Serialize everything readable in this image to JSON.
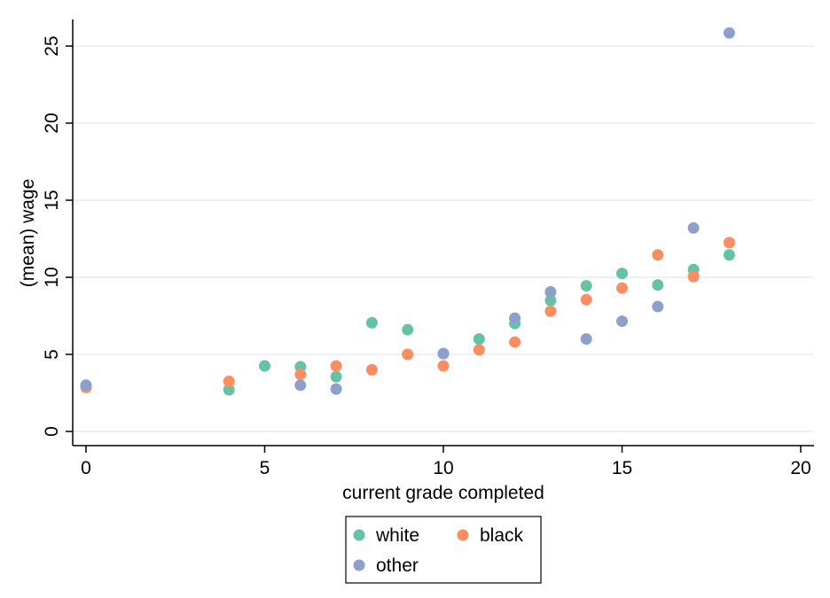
{
  "chart_data": {
    "type": "scatter",
    "xlabel": "current grade completed",
    "ylabel": "(mean) wage",
    "xlim": [
      0,
      20
    ],
    "ylim": [
      0,
      25
    ],
    "xticks": [
      "0",
      "5",
      "10",
      "15",
      "20"
    ],
    "yticks": [
      "0",
      "5",
      "10",
      "15",
      "20",
      "25"
    ],
    "grid": "horizontal",
    "legend_position": "bottom",
    "series": [
      {
        "name": "white",
        "color": "#66c2a5",
        "points": [
          {
            "x": 0,
            "y": 2.9
          },
          {
            "x": 4,
            "y": 2.7
          },
          {
            "x": 5,
            "y": 4.25
          },
          {
            "x": 6,
            "y": 4.2
          },
          {
            "x": 7,
            "y": 3.55
          },
          {
            "x": 8,
            "y": 7.05
          },
          {
            "x": 9,
            "y": 6.6
          },
          {
            "x": 10,
            "y": 5.05
          },
          {
            "x": 11,
            "y": 6.0
          },
          {
            "x": 12,
            "y": 7.0
          },
          {
            "x": 13,
            "y": 8.5
          },
          {
            "x": 14,
            "y": 9.45
          },
          {
            "x": 15,
            "y": 10.25
          },
          {
            "x": 16,
            "y": 9.5
          },
          {
            "x": 17,
            "y": 10.5
          },
          {
            "x": 18,
            "y": 11.45
          }
        ]
      },
      {
        "name": "black",
        "color": "#fc8d62",
        "points": [
          {
            "x": 0,
            "y": 2.85
          },
          {
            "x": 4,
            "y": 3.25
          },
          {
            "x": 6,
            "y": 3.7
          },
          {
            "x": 7,
            "y": 4.25
          },
          {
            "x": 8,
            "y": 4.0
          },
          {
            "x": 9,
            "y": 5.0
          },
          {
            "x": 10,
            "y": 4.25
          },
          {
            "x": 11,
            "y": 5.3
          },
          {
            "x": 12,
            "y": 5.8
          },
          {
            "x": 13,
            "y": 7.8
          },
          {
            "x": 14,
            "y": 8.55
          },
          {
            "x": 15,
            "y": 9.3
          },
          {
            "x": 16,
            "y": 11.45
          },
          {
            "x": 17,
            "y": 10.05
          },
          {
            "x": 18,
            "y": 12.25
          }
        ]
      },
      {
        "name": "other",
        "color": "#8da0cb",
        "points": [
          {
            "x": 0,
            "y": 3.0
          },
          {
            "x": 6,
            "y": 3.0
          },
          {
            "x": 7,
            "y": 2.75
          },
          {
            "x": 10,
            "y": 5.05
          },
          {
            "x": 12,
            "y": 7.35
          },
          {
            "x": 13,
            "y": 9.05
          },
          {
            "x": 14,
            "y": 6.0
          },
          {
            "x": 15,
            "y": 7.15
          },
          {
            "x": 16,
            "y": 8.1
          },
          {
            "x": 17,
            "y": 13.2
          },
          {
            "x": 18,
            "y": 25.85
          }
        ]
      }
    ]
  }
}
